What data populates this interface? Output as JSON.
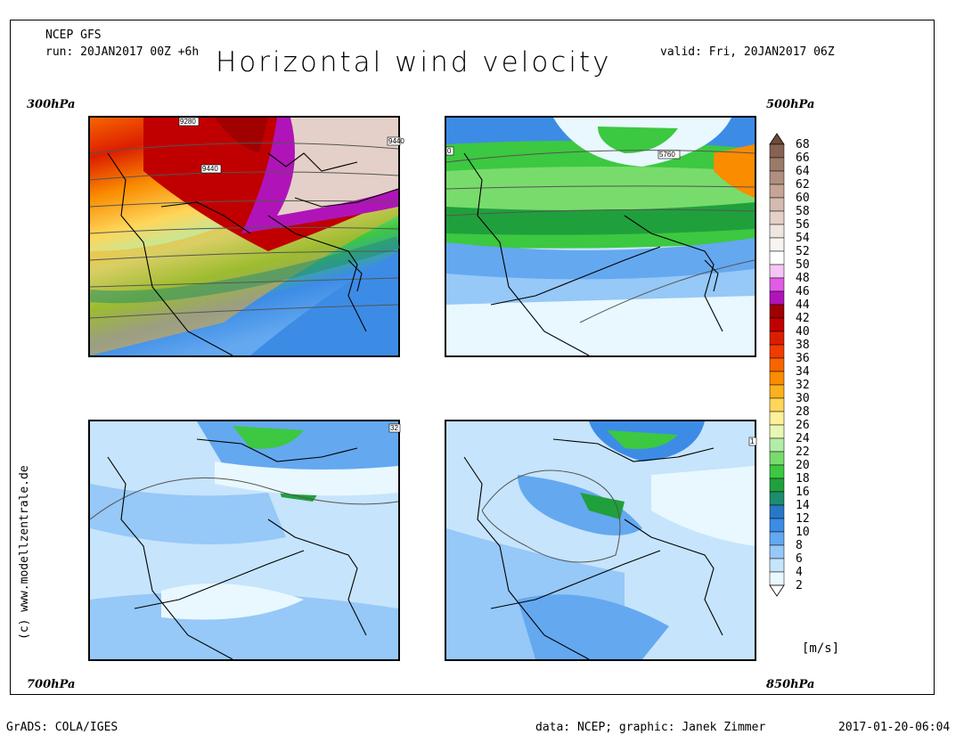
{
  "header": {
    "model": "NCEP GFS",
    "run": "run: 20JAN2017 00Z +6h",
    "valid": "valid: Fri, 20JAN2017 06Z",
    "title": "Horizontal wind velocity"
  },
  "panels": [
    {
      "level": "300hPa",
      "contours": [
        "9280",
        "9440",
        "9440"
      ],
      "theme": "jet300"
    },
    {
      "level": "500hPa",
      "contours": [
        "5760",
        "0"
      ],
      "theme": "mid500"
    },
    {
      "level": "700hPa",
      "contours": [
        "32"
      ],
      "theme": "low700"
    },
    {
      "level": "850hPa",
      "contours": [
        "1"
      ],
      "theme": "low850"
    }
  ],
  "colorbar": {
    "unit": "[m/s]",
    "labels": [
      "68",
      "66",
      "64",
      "62",
      "60",
      "58",
      "56",
      "54",
      "52",
      "50",
      "48",
      "46",
      "44",
      "42",
      "40",
      "38",
      "36",
      "34",
      "32",
      "30",
      "28",
      "26",
      "24",
      "22",
      "20",
      "18",
      "16",
      "14",
      "12",
      "10",
      "8",
      "6",
      "4",
      "2"
    ],
    "colors": [
      "#6e4a3a",
      "#866252",
      "#9c7a6a",
      "#b08f80",
      "#c4a596",
      "#d4bab0",
      "#e4d0c8",
      "#f0e6e0",
      "#f8f4f2",
      "#ffffff",
      "#f4c6f4",
      "#e05ce6",
      "#b014b8",
      "#a00000",
      "#c00000",
      "#dc1e00",
      "#f03c00",
      "#f86400",
      "#fa8c00",
      "#fcb01e",
      "#fed65a",
      "#fff09a",
      "#e8f8b4",
      "#b4ecaa",
      "#78dc6c",
      "#3cc840",
      "#20a03c",
      "#1e8c6e",
      "#2878c8",
      "#3c8ce6",
      "#64a8f0",
      "#96c8f8",
      "#c6e4fc",
      "#e8f8fe"
    ]
  },
  "copyright": "(c) www.modellzentrale.de",
  "footer": {
    "left": "GrADS: COLA/IGES",
    "middle": "data: NCEP; graphic: Janek Zimmer",
    "right": "2017-01-20-06:04"
  }
}
